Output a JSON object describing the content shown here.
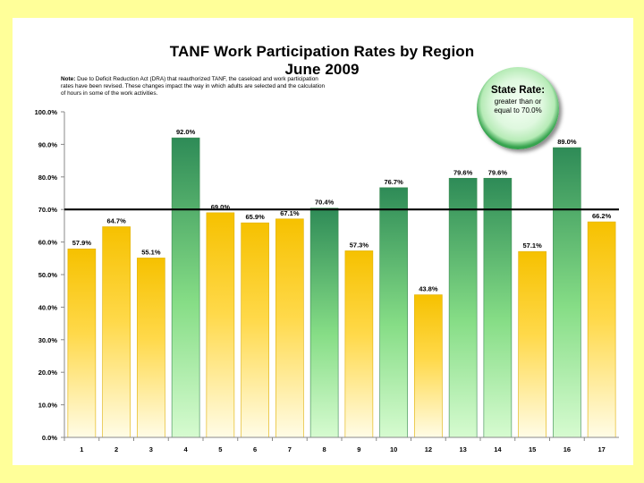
{
  "chart_data": {
    "type": "bar",
    "title": "TANF Work Participation Rates by Region",
    "subtitle": "June 2009",
    "categories": [
      "1",
      "2",
      "3",
      "4",
      "5",
      "6",
      "7",
      "8",
      "9",
      "10",
      "12",
      "13",
      "14",
      "15",
      "16",
      "17"
    ],
    "values": [
      57.9,
      64.7,
      55.1,
      92.0,
      69.0,
      65.9,
      67.1,
      70.4,
      57.3,
      76.7,
      43.8,
      79.6,
      79.6,
      57.1,
      89.0,
      66.2
    ],
    "value_labels": [
      "57.9%",
      "64.7%",
      "55.1%",
      "92.0%",
      "69.0%",
      "65.9%",
      "67.1%",
      "70.4%",
      "57.3%",
      "76.7%",
      "43.8%",
      "79.6%",
      "79.6%",
      "57.1%",
      "89.0%",
      "66.2%"
    ],
    "y_ticks": [
      0,
      10,
      20,
      30,
      40,
      50,
      60,
      70,
      80,
      90,
      100
    ],
    "y_tick_labels": [
      "0.0%",
      "10.0%",
      "20.0%",
      "30.0%",
      "40.0%",
      "50.0%",
      "60.0%",
      "70.0%",
      "80.0%",
      "90.0%",
      "100.0%"
    ],
    "ylim": [
      0,
      100
    ],
    "reference_line": 70,
    "xlabel": "",
    "ylabel": "",
    "grid": false,
    "colors": {
      "above_top": "#2e8b57",
      "above_bottom": "#c8f8c0",
      "below_top": "#f6c100",
      "below_bottom": "#fffbe0",
      "axis": "#888888",
      "reference": "#000000"
    }
  },
  "note": {
    "prefix": "Note:",
    "text": " Due to Deficit Reduction Act (DRA) that reauthorized TANF, the caseload and work participation rates have been revised. These changes impact the way in which adults are selected and the calculation of hours in some of the work activities."
  },
  "state_rate": {
    "label": "State Rate:",
    "text": "greater than or equal to 70.0%"
  },
  "colors": {
    "slide_background": "#ffff99",
    "panel_background": "#ffffff"
  }
}
